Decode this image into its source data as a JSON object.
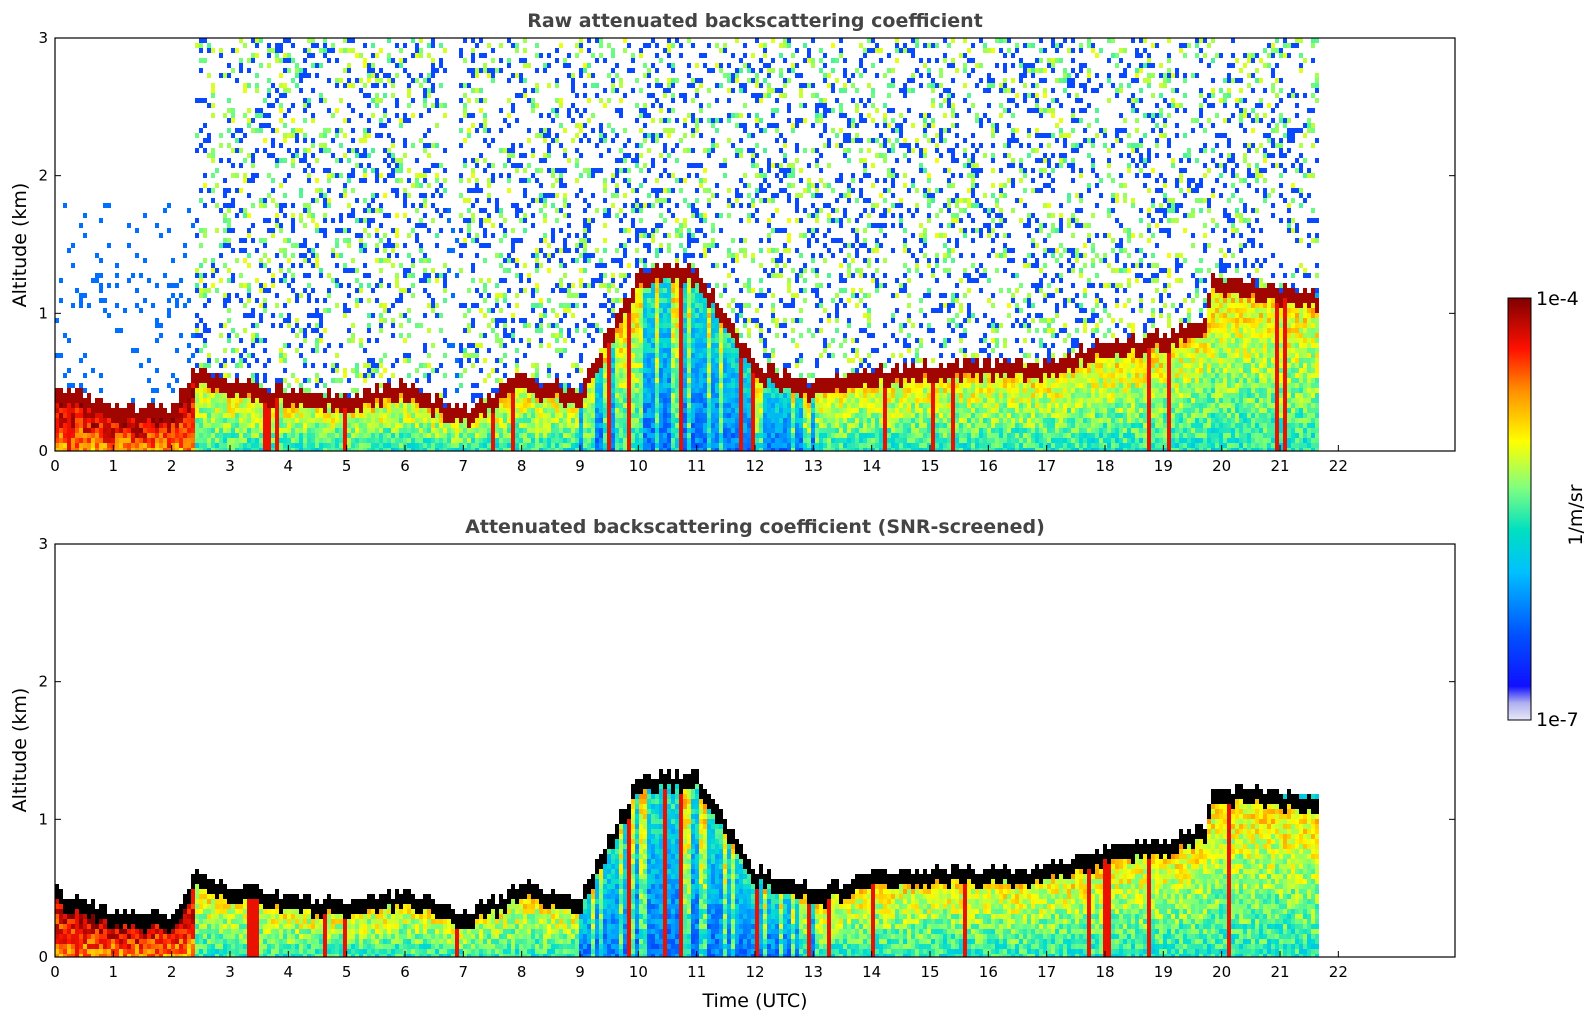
{
  "chart_data": [
    {
      "type": "heatmap",
      "title": "Raw attenuated backscattering coefficient",
      "ylabel": "Altitude (km)",
      "xlabel": "",
      "xlim": [
        0,
        24
      ],
      "ylim": [
        0,
        3
      ],
      "xticks": [
        "0",
        "1",
        "2",
        "3",
        "4",
        "5",
        "6",
        "7",
        "8",
        "9",
        "10",
        "11",
        "12",
        "13",
        "14",
        "15",
        "16",
        "17",
        "18",
        "19",
        "20",
        "21",
        "22"
      ],
      "yticks": [
        "0",
        "1",
        "2",
        "3"
      ],
      "data_extent_hours": [
        0,
        21.65
      ],
      "screened": false,
      "layer_top_km": [
        [
          0,
          0.45
        ],
        [
          1,
          0.3
        ],
        [
          2,
          0.25
        ],
        [
          2.4,
          0.55
        ],
        [
          3,
          0.48
        ],
        [
          4,
          0.4
        ],
        [
          5,
          0.35
        ],
        [
          6,
          0.45
        ],
        [
          7,
          0.25
        ],
        [
          8,
          0.5
        ],
        [
          9,
          0.4
        ],
        [
          10,
          1.25
        ],
        [
          11,
          1.3
        ],
        [
          12,
          0.6
        ],
        [
          13,
          0.45
        ],
        [
          14,
          0.55
        ],
        [
          15,
          0.6
        ],
        [
          16,
          0.6
        ],
        [
          17,
          0.6
        ],
        [
          18,
          0.75
        ],
        [
          19,
          0.8
        ],
        [
          19.75,
          0.9
        ],
        [
          19.8,
          1.2
        ],
        [
          21,
          1.15
        ],
        [
          21.65,
          1.1
        ]
      ]
    },
    {
      "type": "heatmap",
      "title": "Attenuated backscattering coefficient (SNR-screened)",
      "ylabel": "Altitude (km)",
      "xlabel": "Time (UTC)",
      "xlim": [
        0,
        24
      ],
      "ylim": [
        0,
        3
      ],
      "xticks": [
        "0",
        "1",
        "2",
        "3",
        "4",
        "5",
        "6",
        "7",
        "8",
        "9",
        "10",
        "11",
        "12",
        "13",
        "14",
        "15",
        "16",
        "17",
        "18",
        "19",
        "20",
        "21",
        "22"
      ],
      "yticks": [
        "0",
        "1",
        "2",
        "3"
      ],
      "data_extent_hours": [
        0,
        21.65
      ],
      "screened": true
    }
  ],
  "colorbar": {
    "label": "1/m/sr",
    "max_label": "1e-4",
    "min_label": "1e-7",
    "scale": "log",
    "range": [
      1e-07,
      0.0001
    ],
    "colormap": "jet",
    "colors": [
      "#e8e8f8",
      "#0000ff",
      "#00a0ff",
      "#00e0e0",
      "#80ff80",
      "#ffff00",
      "#ff8000",
      "#ff0000",
      "#800000"
    ]
  }
}
